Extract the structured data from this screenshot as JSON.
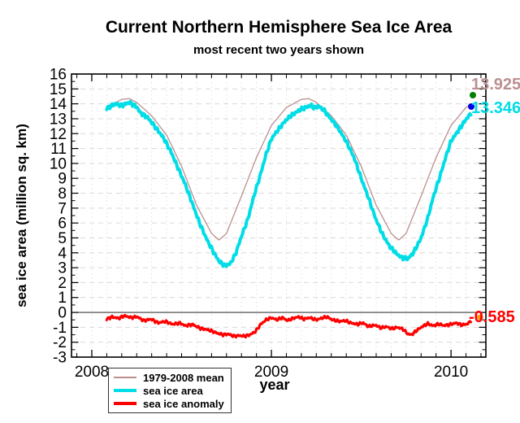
{
  "chart_data": {
    "type": "line",
    "title": "Current Northern Hemisphere Sea Ice Area",
    "subtitle": "most recent two years shown",
    "xlabel": "year",
    "ylabel": "sea ice area (million sq. km)",
    "xlim": [
      2007.887,
      2010.194
    ],
    "ylim": [
      -3,
      16
    ],
    "x_major_ticks": [
      2008,
      2009,
      2010
    ],
    "y_tick_step": 1,
    "grid": "dashed gray horizontal lines at integers, dotted vertical lines monthly, solid line at 0",
    "legend_position": "bottom-left below x-axis",
    "series": [
      {
        "name": "1979-2008 mean",
        "color": "#bc8f8f",
        "line_width": 1.3,
        "points": [
          [
            2008.083,
            13.75
          ],
          [
            2008.167,
            14.3
          ],
          [
            2008.208,
            14.35
          ],
          [
            2008.25,
            14.1
          ],
          [
            2008.333,
            13.2
          ],
          [
            2008.417,
            11.9
          ],
          [
            2008.5,
            9.8
          ],
          [
            2008.583,
            7.2
          ],
          [
            2008.667,
            5.3
          ],
          [
            2008.708,
            4.85
          ],
          [
            2008.75,
            5.3
          ],
          [
            2008.833,
            7.8
          ],
          [
            2008.917,
            10.4
          ],
          [
            2009.0,
            12.55
          ],
          [
            2009.083,
            13.75
          ],
          [
            2009.167,
            14.3
          ],
          [
            2009.208,
            14.35
          ],
          [
            2009.25,
            14.1
          ],
          [
            2009.333,
            13.2
          ],
          [
            2009.417,
            11.9
          ],
          [
            2009.5,
            9.8
          ],
          [
            2009.583,
            7.2
          ],
          [
            2009.667,
            5.3
          ],
          [
            2009.708,
            4.85
          ],
          [
            2009.75,
            5.3
          ],
          [
            2009.833,
            7.8
          ],
          [
            2009.917,
            10.4
          ],
          [
            2010.0,
            12.55
          ],
          [
            2010.083,
            13.75
          ],
          [
            2010.11,
            13.925
          ]
        ]
      },
      {
        "name": "sea ice area",
        "color": "#00dde6",
        "line_width": 4,
        "points": [
          [
            2008.083,
            13.7
          ],
          [
            2008.13,
            14.0
          ],
          [
            2008.17,
            13.9
          ],
          [
            2008.21,
            14.1
          ],
          [
            2008.25,
            13.8
          ],
          [
            2008.27,
            13.4
          ],
          [
            2008.31,
            13.1
          ],
          [
            2008.35,
            12.5
          ],
          [
            2008.4,
            11.7
          ],
          [
            2008.44,
            10.8
          ],
          [
            2008.48,
            9.7
          ],
          [
            2008.52,
            8.6
          ],
          [
            2008.56,
            7.3
          ],
          [
            2008.6,
            6.0
          ],
          [
            2008.64,
            4.9
          ],
          [
            2008.68,
            4.0
          ],
          [
            2008.71,
            3.4
          ],
          [
            2008.74,
            3.15
          ],
          [
            2008.77,
            3.25
          ],
          [
            2008.8,
            3.9
          ],
          [
            2008.83,
            5.0
          ],
          [
            2008.87,
            6.3
          ],
          [
            2008.9,
            7.7
          ],
          [
            2008.94,
            9.3
          ],
          [
            2008.97,
            10.6
          ],
          [
            2009.0,
            11.65
          ],
          [
            2009.04,
            12.3
          ],
          [
            2009.08,
            12.9
          ],
          [
            2009.12,
            13.3
          ],
          [
            2009.16,
            13.6
          ],
          [
            2009.19,
            13.75
          ],
          [
            2009.22,
            13.9
          ],
          [
            2009.24,
            13.7
          ],
          [
            2009.26,
            13.85
          ],
          [
            2009.29,
            13.6
          ],
          [
            2009.33,
            13.0
          ],
          [
            2009.37,
            12.4
          ],
          [
            2009.42,
            11.4
          ],
          [
            2009.46,
            10.4
          ],
          [
            2009.5,
            9.0
          ],
          [
            2009.54,
            7.7
          ],
          [
            2009.58,
            6.3
          ],
          [
            2009.62,
            5.2
          ],
          [
            2009.66,
            4.4
          ],
          [
            2009.7,
            3.9
          ],
          [
            2009.73,
            3.65
          ],
          [
            2009.76,
            3.6
          ],
          [
            2009.79,
            4.0
          ],
          [
            2009.83,
            4.9
          ],
          [
            2009.87,
            6.3
          ],
          [
            2009.9,
            7.7
          ],
          [
            2009.94,
            9.2
          ],
          [
            2009.97,
            10.4
          ],
          [
            2010.0,
            11.5
          ],
          [
            2010.04,
            12.2
          ],
          [
            2010.08,
            12.9
          ],
          [
            2010.11,
            13.35
          ]
        ]
      },
      {
        "name": "sea ice anomaly",
        "color": "#ff0000",
        "line_width": 3.2,
        "points": [
          [
            2008.083,
            -0.45
          ],
          [
            2008.11,
            -0.3
          ],
          [
            2008.15,
            -0.4
          ],
          [
            2008.18,
            -0.22
          ],
          [
            2008.22,
            -0.35
          ],
          [
            2008.25,
            -0.28
          ],
          [
            2008.29,
            -0.55
          ],
          [
            2008.33,
            -0.45
          ],
          [
            2008.37,
            -0.7
          ],
          [
            2008.41,
            -0.6
          ],
          [
            2008.45,
            -0.8
          ],
          [
            2008.49,
            -0.7
          ],
          [
            2008.52,
            -0.9
          ],
          [
            2008.56,
            -0.8
          ],
          [
            2008.6,
            -1.05
          ],
          [
            2008.64,
            -1.15
          ],
          [
            2008.67,
            -1.25
          ],
          [
            2008.7,
            -1.4
          ],
          [
            2008.73,
            -1.5
          ],
          [
            2008.76,
            -1.45
          ],
          [
            2008.79,
            -1.6
          ],
          [
            2008.82,
            -1.55
          ],
          [
            2008.85,
            -1.6
          ],
          [
            2008.88,
            -1.5
          ],
          [
            2008.91,
            -1.3
          ],
          [
            2008.94,
            -0.8
          ],
          [
            2008.97,
            -0.5
          ],
          [
            2009.0,
            -0.35
          ],
          [
            2009.03,
            -0.5
          ],
          [
            2009.06,
            -0.35
          ],
          [
            2009.09,
            -0.55
          ],
          [
            2009.12,
            -0.4
          ],
          [
            2009.15,
            -0.3
          ],
          [
            2009.18,
            -0.45
          ],
          [
            2009.21,
            -0.35
          ],
          [
            2009.25,
            -0.5
          ],
          [
            2009.28,
            -0.38
          ],
          [
            2009.31,
            -0.3
          ],
          [
            2009.34,
            -0.5
          ],
          [
            2009.38,
            -0.6
          ],
          [
            2009.41,
            -0.55
          ],
          [
            2009.44,
            -0.7
          ],
          [
            2009.48,
            -0.8
          ],
          [
            2009.51,
            -0.7
          ],
          [
            2009.54,
            -0.95
          ],
          [
            2009.58,
            -0.85
          ],
          [
            2009.61,
            -1.05
          ],
          [
            2009.64,
            -0.95
          ],
          [
            2009.67,
            -1.1
          ],
          [
            2009.7,
            -1.0
          ],
          [
            2009.73,
            -1.1
          ],
          [
            2009.76,
            -1.45
          ],
          [
            2009.78,
            -1.5
          ],
          [
            2009.81,
            -1.2
          ],
          [
            2009.84,
            -0.95
          ],
          [
            2009.87,
            -0.75
          ],
          [
            2009.9,
            -0.9
          ],
          [
            2009.93,
            -0.78
          ],
          [
            2009.96,
            -0.88
          ],
          [
            2010.0,
            -0.8
          ],
          [
            2010.03,
            -0.7
          ],
          [
            2010.06,
            -0.85
          ],
          [
            2010.09,
            -0.78
          ],
          [
            2010.11,
            -0.585
          ]
        ]
      }
    ],
    "current_values": {
      "mean_1979_2008": 13.925,
      "sea_ice_area": 13.346,
      "sea_ice_anomaly": -0.585
    },
    "markers": [
      {
        "name": "current-mean-dot",
        "color": "#008000",
        "value": 13.925
      },
      {
        "name": "current-area-dot",
        "color": "#0000e6",
        "value": 13.346
      },
      {
        "name": "current-anomaly-dot",
        "color": "#ff9f00",
        "value": -0.585
      }
    ]
  },
  "value_labels": {
    "mean": "13.925",
    "area": "13.346",
    "anomaly": "-0.585"
  },
  "colors": {
    "mean_line": "#bc8f8f",
    "area_line": "#00dde6",
    "anomaly_line": "#ff0000",
    "mean_label": "#bc8f8f",
    "area_label": "#00dde6",
    "anomaly_label": "#ff0000",
    "grid_dashed": "#d9d9d9",
    "grid_dotted": "#e0e0e0",
    "zero_line": "#3a3a3a",
    "frame": "#000000",
    "background": "#ffffff"
  }
}
